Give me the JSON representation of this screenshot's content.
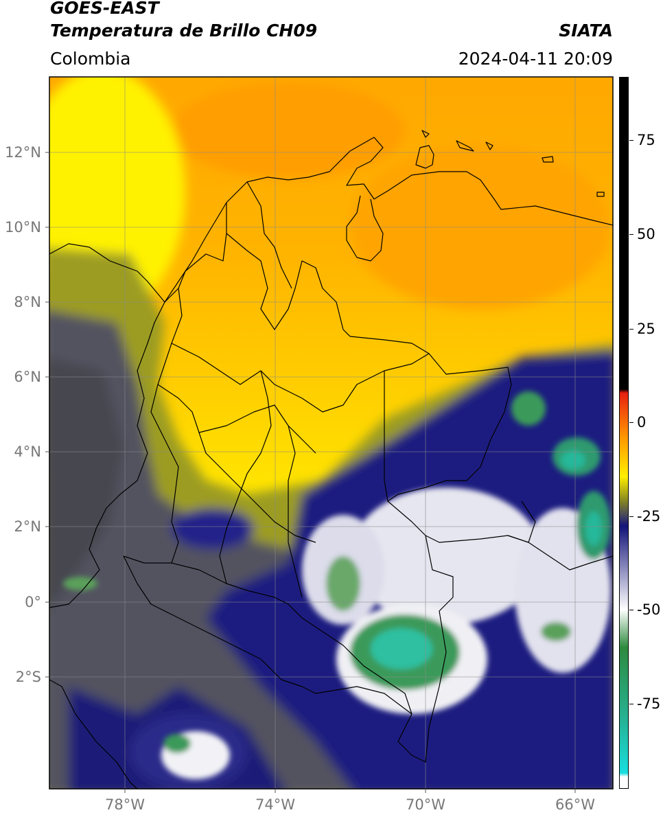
{
  "header": {
    "title_line1": "GOES-EAST",
    "title_line2": "Temperatura de Brillo CH09",
    "organization": "SIATA",
    "region": "Colombia",
    "datetime": "2024-04-11 20:09"
  },
  "map": {
    "latitude_labels": [
      "12°N",
      "10°N",
      "8°N",
      "6°N",
      "4°N",
      "2°N",
      "0°",
      "2°S"
    ],
    "longitude_labels": [
      "78°W",
      "74°W",
      "70°W",
      "66°W"
    ],
    "latitude_values": [
      12,
      10,
      8,
      6,
      4,
      2,
      0,
      -2
    ],
    "longitude_values": [
      -78,
      -74,
      -70,
      -66
    ],
    "lat_range": [
      -5.0,
      14.0
    ],
    "lon_range": [
      -80.0,
      -65.0
    ],
    "gridlines": true
  },
  "colorbar": {
    "tick_labels": [
      "75",
      "50",
      "25",
      "0",
      "-25",
      "-50",
      "-75"
    ],
    "tick_values": [
      75,
      50,
      25,
      0,
      -25,
      -50,
      -75
    ],
    "range": [
      -97,
      90
    ],
    "colors": {
      "warm_black": "#000000",
      "red": "#e82010",
      "orange": "#ff9a00",
      "yellow": "#ffef00",
      "olive": "#8c8c1e",
      "gray": "#4a4a5a",
      "navy": "#14147a",
      "white": "#ffffff",
      "green": "#2e8a3e",
      "teal": "#25b59a",
      "cyan": "#18dede"
    }
  }
}
